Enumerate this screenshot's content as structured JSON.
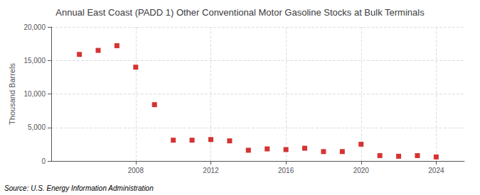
{
  "chart_data": {
    "type": "scatter",
    "title": "Annual East Coast (PADD 1) Other Conventional Motor Gasoline Stocks at Bulk Terminals",
    "ylabel": "Thousand Barrels",
    "annotation": "Source: U.S. Energy Information Administration",
    "x": [
      2005,
      2006,
      2007,
      2008,
      2009,
      2010,
      2011,
      2012,
      2013,
      2014,
      2015,
      2016,
      2017,
      2018,
      2019,
      2020,
      2021,
      2022,
      2023,
      2024
    ],
    "values": [
      15900,
      16500,
      17200,
      14000,
      8400,
      3100,
      3100,
      3200,
      3000,
      1600,
      1800,
      1700,
      1900,
      1400,
      1400,
      2500,
      800,
      700,
      800,
      600
    ],
    "color": "#cc0000",
    "marker": "square",
    "xlim": [
      2003.5,
      2025.5
    ],
    "xticks": [
      2008,
      2012,
      2016,
      2020,
      2024
    ],
    "ylim": [
      0,
      20000
    ],
    "yticks": [
      0,
      {
        "value": 5000,
        "label": "5,000"
      },
      {
        "value": 10000,
        "label": "10,000"
      },
      {
        "value": 15000,
        "label": "15,000"
      },
      {
        "value": 20000,
        "label": "20,000"
      }
    ],
    "grid": true
  }
}
